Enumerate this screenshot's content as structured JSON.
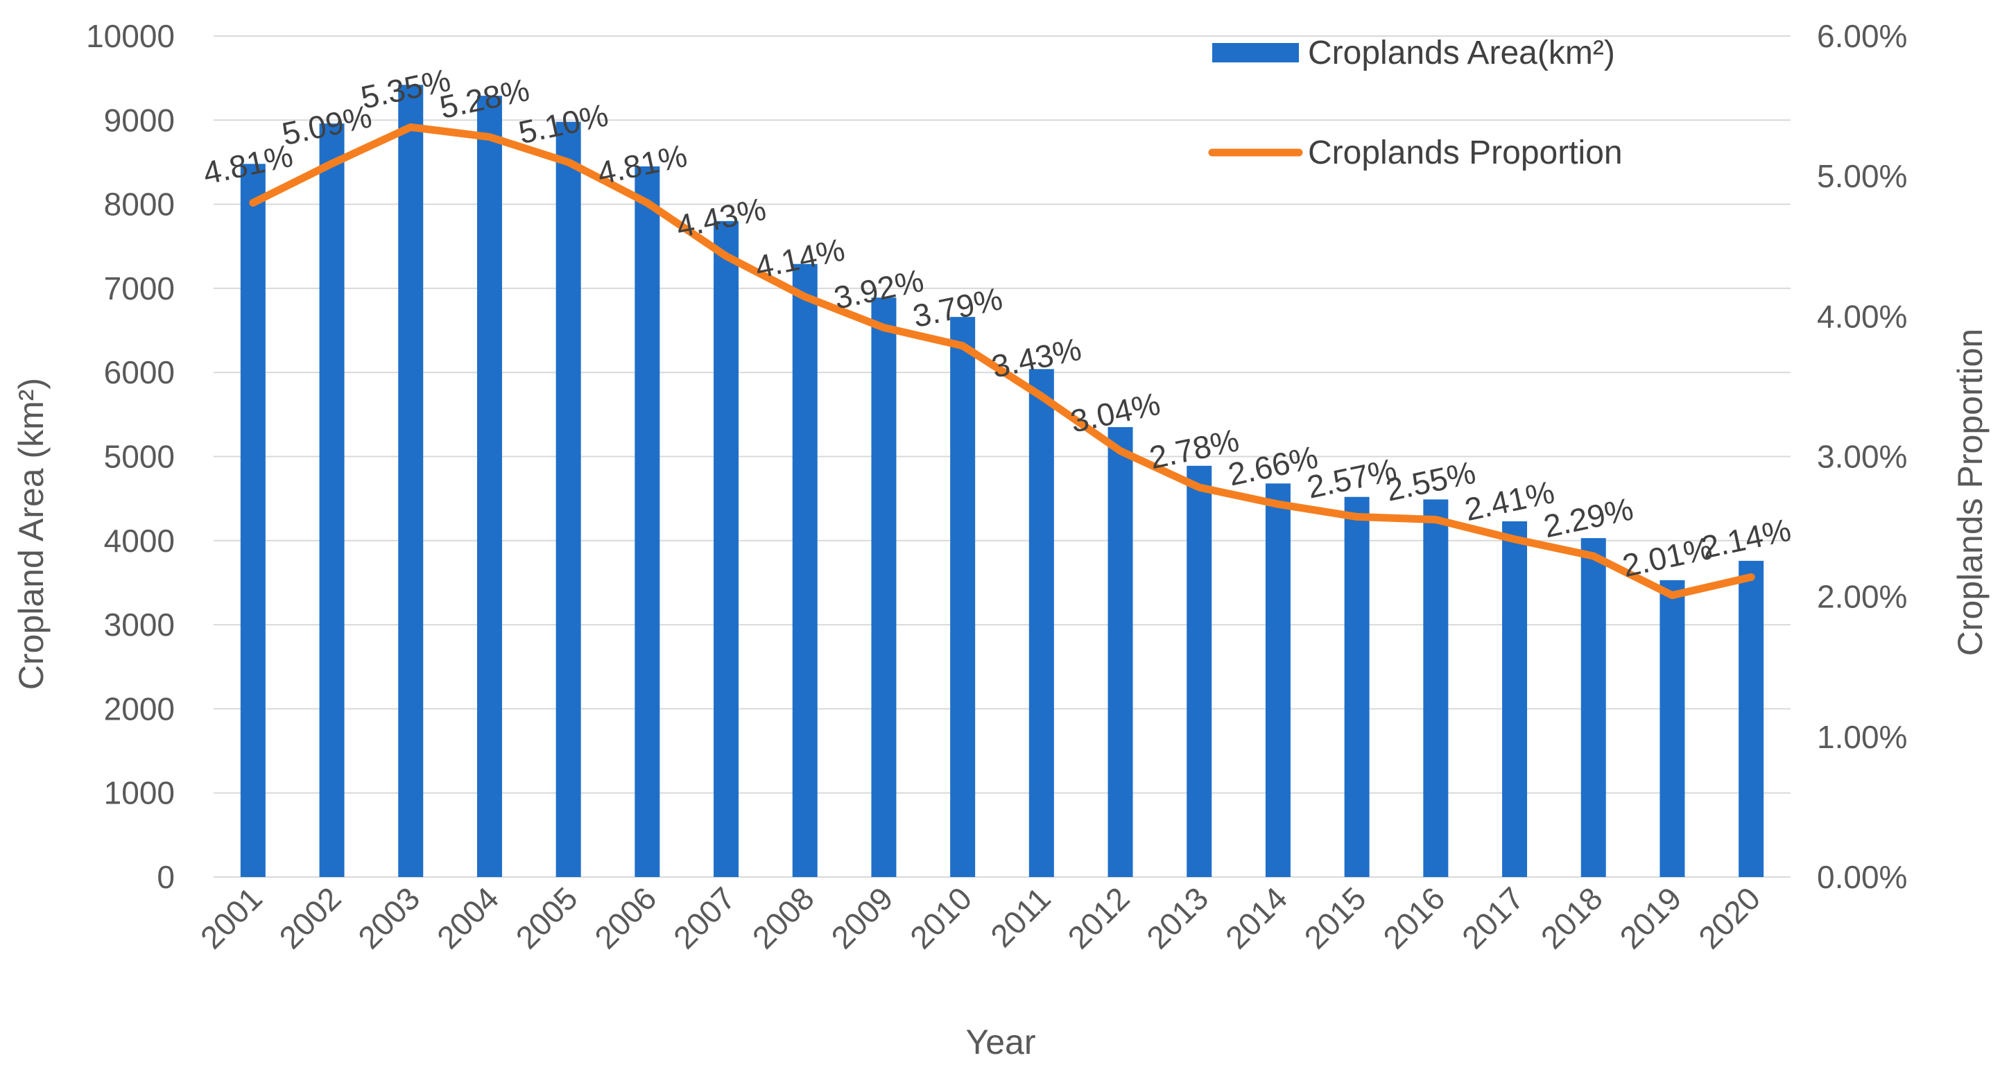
{
  "chart_data": {
    "type": "bar",
    "categories": [
      "2001",
      "2002",
      "2003",
      "2004",
      "2005",
      "2006",
      "2007",
      "2008",
      "2009",
      "2010",
      "2011",
      "2012",
      "2013",
      "2014",
      "2015",
      "2016",
      "2017",
      "2018",
      "2019",
      "2020"
    ],
    "series": [
      {
        "name": "Croplands Area(km²)",
        "type": "bar",
        "axis": "left",
        "color": "#1F6FC8",
        "values": [
          8480,
          8960,
          9420,
          9290,
          8980,
          8450,
          7800,
          7290,
          6890,
          6660,
          6040,
          5350,
          4890,
          4680,
          4520,
          4490,
          4230,
          4030,
          3530,
          3760
        ]
      },
      {
        "name": "Croplands Proportion",
        "type": "line",
        "axis": "right",
        "color": "#F57F20",
        "values": [
          4.81,
          5.09,
          5.35,
          5.28,
          5.1,
          4.81,
          4.43,
          4.14,
          3.92,
          3.79,
          3.43,
          3.04,
          2.78,
          2.66,
          2.57,
          2.55,
          2.41,
          2.29,
          2.01,
          2.14
        ],
        "labels": [
          "4.81%",
          "5.09%",
          "5.35%",
          "5.28%",
          "5.10%",
          "4.81%",
          "4.43%",
          "4.14%",
          "3.92%",
          "3.79%",
          "3.43%",
          "3.04%",
          "2.78%",
          "2.66%",
          "2.57%",
          "2.55%",
          "2.41%",
          "2.29%",
          "2.01%",
          "2.14%"
        ]
      }
    ],
    "xlabel": "Year",
    "ylabel": "Cropland  Area  (km²)",
    "y2label": "Croplands Proportion",
    "ylim": [
      0,
      10000
    ],
    "yticks": [
      "0",
      "1000",
      "2000",
      "3000",
      "4000",
      "5000",
      "6000",
      "7000",
      "8000",
      "9000",
      "10000"
    ],
    "y2lim": [
      0,
      6
    ],
    "y2ticks": [
      "0.00%",
      "1.00%",
      "2.00%",
      "3.00%",
      "4.00%",
      "5.00%",
      "6.00%"
    ],
    "legend_position": "top-right",
    "grid": true
  }
}
